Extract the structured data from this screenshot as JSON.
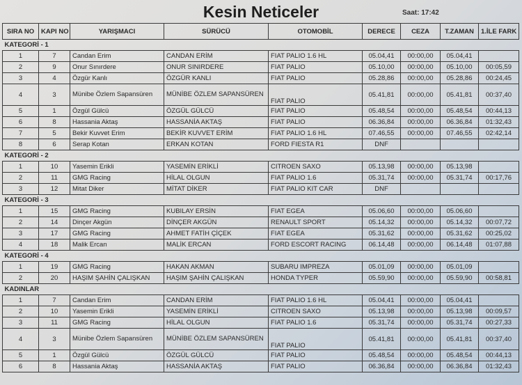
{
  "title": "Kesin Neticeler",
  "time": "Saat: 17:42",
  "columns": [
    "SIRA NO",
    "KAPI NO",
    "YARIŞMACI",
    "SÜRÜCÜ",
    "OTOMOBİL",
    "DERECE",
    "CEZA",
    "T.ZAMAN",
    "1.İLE FARK"
  ],
  "sections": [
    {
      "title": "KATEGORİ - 1",
      "rows": [
        [
          "1",
          "7",
          "Candan Erim",
          "CANDAN ERİM",
          "FIAT PALIO 1.6 HL",
          "05.04,41",
          "00:00,00",
          "05.04,41",
          ""
        ],
        [
          "2",
          "9",
          "Onur Sınırdere",
          "ONUR SINIRDERE",
          "FIAT PALIO",
          "05.10,00",
          "00:00,00",
          "05.10,00",
          "00:05,59"
        ],
        [
          "3",
          "4",
          "Özgür Kanlı",
          "ÖZGÜR KANLI",
          "FIAT PALIO",
          "05.28,86",
          "00:00,00",
          "05.28,86",
          "00:24,45"
        ],
        [
          "4",
          "3",
          "Münibe Özlem Sapansüren",
          "MÜNİBE ÖZLEM SAPANSÜREN",
          "FIAT PALIO",
          "05.41,81",
          "00:00,00",
          "05.41,81",
          "00:37,40"
        ],
        [
          "5",
          "1",
          "Özgül Gülcü",
          "ÖZGÜL GÜLCÜ",
          "FIAT PALIO",
          "05.48,54",
          "00:00,00",
          "05.48,54",
          "00:44,13"
        ],
        [
          "6",
          "8",
          "Hassania Aktaş",
          "HASSANİA AKTAŞ",
          "FIAT PALIO",
          "06.36,84",
          "00:00,00",
          "06.36,84",
          "01:32,43"
        ],
        [
          "7",
          "5",
          "Bekir Kuvvet Erim",
          "BEKİR KUVVET ERİM",
          "FIAT PALIO 1.6 HL",
          "07.46,55",
          "00:00,00",
          "07.46,55",
          "02:42,14"
        ],
        [
          "8",
          "6",
          "Serap Kotan",
          "ERKAN KOTAN",
          "FORD FIESTA R1",
          "DNF",
          "",
          "",
          ""
        ]
      ]
    },
    {
      "title": "KATEGORİ - 2",
      "rows": [
        [
          "1",
          "10",
          "Yasemin Erikli",
          "YASEMİN ERİKLİ",
          "CITROEN SAXO",
          "05.13,98",
          "00:00,00",
          "05.13,98",
          ""
        ],
        [
          "2",
          "11",
          "GMG Racing",
          "HİLAL OLGUN",
          "FIAT PALIO 1.6",
          "05.31,74",
          "00:00,00",
          "05.31,74",
          "00:17,76"
        ],
        [
          "3",
          "12",
          "Mitat Diker",
          "MİTAT DİKER",
          "FIAT PALIO KIT CAR",
          "DNF",
          "",
          "",
          ""
        ]
      ]
    },
    {
      "title": "KATEGORİ - 3",
      "rows": [
        [
          "1",
          "15",
          "GMG Racing",
          "KUBILAY ERSİN",
          "FIAT EGEA",
          "05.06,60",
          "00:00,00",
          "05.06,60",
          ""
        ],
        [
          "2",
          "14",
          "Dinçer Akgün",
          "DİNÇER AKGÜN",
          "RENAULT SPORT",
          "05.14,32",
          "00:00,00",
          "05.14,32",
          "00:07,72"
        ],
        [
          "3",
          "17",
          "GMG Racing",
          "AHMET FATİH ÇİÇEK",
          "FIAT EGEA",
          "05.31,62",
          "00:00,00",
          "05.31,62",
          "00:25,02"
        ],
        [
          "4",
          "18",
          "Malik Ercan",
          "MALİK ERCAN",
          "FORD ESCORT RACING",
          "06.14,48",
          "00:00,00",
          "06.14,48",
          "01:07,88"
        ]
      ]
    },
    {
      "title": "KATEGORİ - 4",
      "rows": [
        [
          "1",
          "19",
          "GMG Racing",
          "HAKAN AKMAN",
          "SUBARU IMPREZA",
          "05.01,09",
          "00:00,00",
          "05.01,09",
          ""
        ],
        [
          "2",
          "20",
          "HAŞIM ŞAHİN ÇALIŞKAN",
          "HAŞIM ŞAHİN ÇALIŞKAN",
          "HONDA TYPER",
          "05.59,90",
          "00:00,00",
          "05.59,90",
          "00:58,81"
        ]
      ]
    },
    {
      "title": "KADINLAR",
      "rows": [
        [
          "1",
          "7",
          "Candan Erim",
          "CANDAN ERİM",
          "FIAT PALIO 1.6 HL",
          "05.04,41",
          "00:00,00",
          "05.04,41",
          ""
        ],
        [
          "2",
          "10",
          "Yasemin Erikli",
          "YASEMİN ERİKLİ",
          "CITROEN SAXO",
          "05.13,98",
          "00:00,00",
          "05.13,98",
          "00:09,57"
        ],
        [
          "3",
          "11",
          "GMG Racing",
          "HİLAL OLGUN",
          "FIAT PALIO 1.6",
          "05.31,74",
          "00:00,00",
          "05.31,74",
          "00:27,33"
        ],
        [
          "4",
          "3",
          "Münibe Özlem Sapansüren",
          "MÜNİBE ÖZLEM SAPANSÜREN",
          "FIAT PALIO",
          "05.41,81",
          "00:00,00",
          "05.41,81",
          "00:37,40"
        ],
        [
          "5",
          "1",
          "Özgül Gülcü",
          "ÖZGÜL GÜLCÜ",
          "FIAT PALIO",
          "05.48,54",
          "00:00,00",
          "05.48,54",
          "00:44,13"
        ],
        [
          "6",
          "8",
          "Hassania Aktaş",
          "HASSANİA AKTAŞ",
          "FIAT PALIO",
          "06.36,84",
          "00:00,00",
          "06.36,84",
          "01:32,43"
        ]
      ]
    }
  ]
}
